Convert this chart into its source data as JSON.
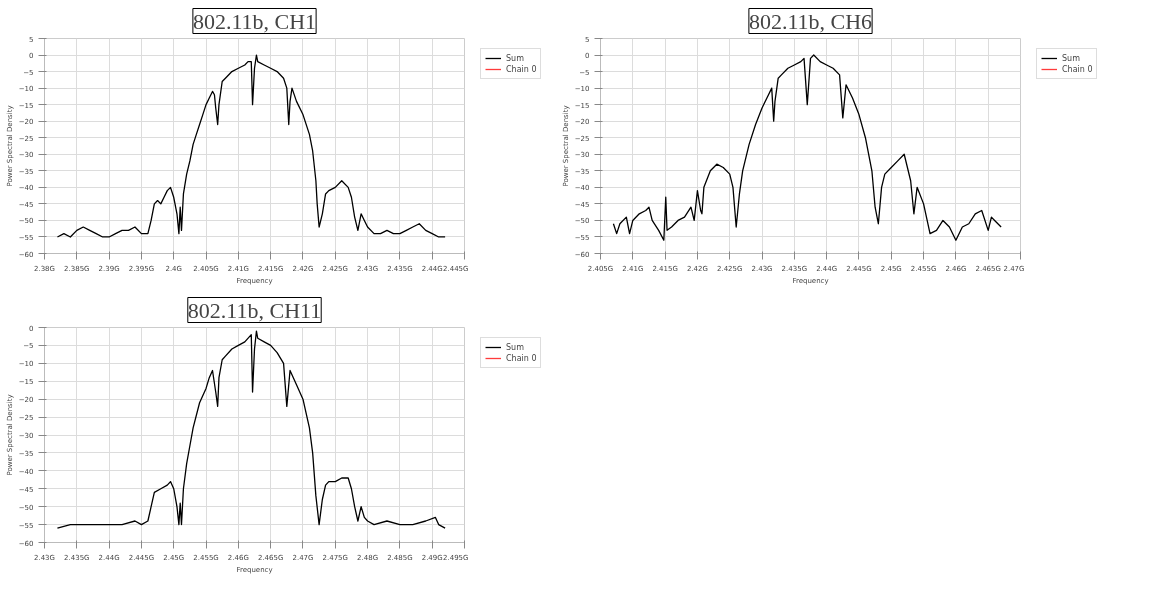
{
  "chart_data": [
    {
      "type": "line",
      "title": "802.11b, CH1",
      "xlabel": "Frequency",
      "ylabel": "Power Spectral Density",
      "grid": true,
      "legend": "right",
      "marker": "none",
      "line_style": "solid",
      "xlim": [
        2.38,
        2.445
      ],
      "ylim": [
        -60,
        5
      ],
      "xticks": [
        {
          "value": 2.38,
          "label": "2.38G"
        },
        {
          "value": 2.385,
          "label": "2.385G"
        },
        {
          "value": 2.39,
          "label": "2.39G"
        },
        {
          "value": 2.395,
          "label": "2.395G"
        },
        {
          "value": 2.4,
          "label": "2.4G"
        },
        {
          "value": 2.405,
          "label": "2.405G"
        },
        {
          "value": 2.41,
          "label": "2.41G"
        },
        {
          "value": 2.415,
          "label": "2.415G"
        },
        {
          "value": 2.42,
          "label": "2.42G"
        },
        {
          "value": 2.425,
          "label": "2.425G"
        },
        {
          "value": 2.43,
          "label": "2.43G"
        },
        {
          "value": 2.435,
          "label": "2.435G"
        },
        {
          "value": 2.44,
          "label": "2.44G"
        },
        {
          "value": 2.445,
          "label": "2.445G"
        }
      ],
      "yticks": [
        5,
        0,
        -5,
        -10,
        -15,
        -20,
        -25,
        -30,
        -35,
        -40,
        -45,
        -50,
        -55,
        -60
      ],
      "x": [
        2.382,
        2.383,
        2.384,
        2.385,
        2.386,
        2.387,
        2.388,
        2.389,
        2.39,
        2.391,
        2.392,
        2.393,
        2.394,
        2.395,
        2.396,
        2.3965,
        2.397,
        2.3975,
        2.398,
        2.3985,
        2.399,
        2.3995,
        2.4,
        2.4005,
        2.4008,
        2.401,
        2.4012,
        2.4015,
        2.402,
        2.4025,
        2.403,
        2.4035,
        2.404,
        2.4045,
        2.405,
        2.4055,
        2.406,
        2.4063,
        2.4065,
        2.4068,
        2.407,
        2.4075,
        2.408,
        2.409,
        2.41,
        2.411,
        2.4115,
        2.412,
        2.4122,
        2.4125,
        2.4128,
        2.413,
        2.414,
        2.415,
        2.416,
        2.417,
        2.4175,
        2.4178,
        2.418,
        2.4183,
        2.419,
        2.42,
        2.421,
        2.4215,
        2.422,
        2.4222,
        2.4225,
        2.423,
        2.4235,
        2.424,
        2.425,
        2.426,
        2.427,
        2.4275,
        2.428,
        2.4285,
        2.429,
        2.4295,
        2.43,
        2.431,
        2.432,
        2.433,
        2.434,
        2.435,
        2.436,
        2.437,
        2.438,
        2.439,
        2.44,
        2.441,
        2.442
      ],
      "series": [
        {
          "name": "Sum",
          "color": "#000000",
          "values": [
            -55,
            -54,
            -55,
            -53,
            -52,
            -53,
            -54,
            -55,
            -55,
            -54,
            -53,
            -53,
            -52,
            -54,
            -54,
            -50,
            -45,
            -44,
            -45,
            -43,
            -41,
            -40,
            -43,
            -48,
            -54,
            -46,
            -53,
            -42,
            -36,
            -32,
            -27,
            -24,
            -21,
            -18,
            -15,
            -13,
            -11,
            -12,
            -16,
            -21,
            -15,
            -8,
            -7,
            -5,
            -4,
            -3,
            -2,
            -2,
            -15,
            -4,
            0,
            -2,
            -3,
            -4,
            -5,
            -7,
            -10,
            -21,
            -14,
            -10,
            -14,
            -18,
            -24,
            -29,
            -38,
            -45,
            -52,
            -48,
            -42,
            -41,
            -40,
            -38,
            -40,
            -43,
            -49,
            -53,
            -48,
            -50,
            -52,
            -54,
            -54,
            -53,
            -54,
            -54,
            -53,
            -52,
            -51,
            -53,
            -54,
            -55,
            -55
          ]
        },
        {
          "name": "Chain 0",
          "color": "#ff3b3b",
          "values": [
            null,
            null,
            null,
            null,
            null,
            null,
            null,
            null,
            null,
            null,
            null,
            null,
            null,
            null,
            null,
            null,
            null,
            null,
            null,
            null,
            null,
            null,
            null,
            null,
            null,
            null,
            null,
            null,
            null,
            null,
            null,
            null,
            null,
            null,
            null,
            null,
            null,
            null,
            null,
            null,
            null,
            null,
            null,
            null,
            null,
            null,
            null,
            null,
            null,
            null,
            null,
            null,
            null,
            null,
            null,
            null,
            null,
            null,
            null,
            null,
            null,
            null,
            null,
            null,
            null,
            null,
            null,
            null,
            null,
            null,
            null,
            null,
            null,
            null,
            null,
            null,
            null,
            null,
            null,
            null,
            null,
            null,
            null,
            null,
            null,
            null,
            null,
            null,
            null,
            null,
            null
          ]
        }
      ]
    },
    {
      "type": "line",
      "title": "802.11b, CH6",
      "xlabel": "Frequency",
      "ylabel": "Power Spectral Density",
      "grid": true,
      "legend": "right",
      "marker": "none",
      "line_style": "solid",
      "xlim": [
        2.405,
        2.47
      ],
      "ylim": [
        -60,
        5
      ],
      "xticks": [
        {
          "value": 2.405,
          "label": "2.405G"
        },
        {
          "value": 2.41,
          "label": "2.41G"
        },
        {
          "value": 2.415,
          "label": "2.415G"
        },
        {
          "value": 2.42,
          "label": "2.42G"
        },
        {
          "value": 2.425,
          "label": "2.425G"
        },
        {
          "value": 2.43,
          "label": "2.43G"
        },
        {
          "value": 2.435,
          "label": "2.435G"
        },
        {
          "value": 2.44,
          "label": "2.44G"
        },
        {
          "value": 2.445,
          "label": "2.445G"
        },
        {
          "value": 2.45,
          "label": "2.45G"
        },
        {
          "value": 2.455,
          "label": "2.455G"
        },
        {
          "value": 2.46,
          "label": "2.46G"
        },
        {
          "value": 2.465,
          "label": "2.465G"
        },
        {
          "value": 2.47,
          "label": "2.47G"
        }
      ],
      "yticks": [
        5,
        0,
        -5,
        -10,
        -15,
        -20,
        -25,
        -30,
        -35,
        -40,
        -45,
        -50,
        -55,
        -60
      ],
      "x": [
        2.407,
        2.4075,
        2.408,
        2.409,
        2.4095,
        2.41,
        2.411,
        2.412,
        2.4125,
        2.413,
        2.414,
        2.4148,
        2.4151,
        2.4153,
        2.416,
        2.417,
        2.418,
        2.419,
        2.4195,
        2.42,
        2.4205,
        2.4207,
        2.421,
        2.422,
        2.423,
        2.424,
        2.425,
        2.4255,
        2.426,
        2.4265,
        2.427,
        2.428,
        2.429,
        2.43,
        2.431,
        2.4315,
        2.4318,
        2.432,
        2.4325,
        2.433,
        2.434,
        2.435,
        2.436,
        2.4365,
        2.437,
        2.4375,
        2.438,
        2.439,
        2.44,
        2.441,
        2.442,
        2.4425,
        2.443,
        2.444,
        2.445,
        2.446,
        2.447,
        2.4475,
        2.448,
        2.4485,
        2.449,
        2.45,
        2.451,
        2.452,
        2.453,
        2.4535,
        2.454,
        2.455,
        2.456,
        2.457,
        2.458,
        2.459,
        2.46,
        2.461,
        2.462,
        2.463,
        2.464,
        2.465,
        2.4655,
        2.466,
        2.467
      ],
      "series": [
        {
          "name": "Sum",
          "color": "#000000",
          "values": [
            -51,
            -54,
            -51,
            -49,
            -54,
            -50,
            -48,
            -47,
            -46,
            -50,
            -53,
            -56,
            -43,
            -53,
            -52,
            -50,
            -49,
            -46,
            -50,
            -41,
            -47,
            -48,
            -40,
            -35,
            -33,
            -34,
            -36,
            -40,
            -52,
            -42,
            -35,
            -27,
            -21,
            -16,
            -12,
            -10,
            -20,
            -14,
            -7,
            -6,
            -4,
            -3,
            -2,
            -1,
            -15,
            -1,
            0,
            -2,
            -3,
            -4,
            -6,
            -19,
            -9,
            -13,
            -18,
            -25,
            -35,
            -46,
            -51,
            -40,
            -36,
            -34,
            -32,
            -30,
            -38,
            -48,
            -40,
            -45,
            -54,
            -53,
            -50,
            -52,
            -56,
            -52,
            -51,
            -48,
            -47,
            -53,
            -49,
            -50,
            -52
          ]
        },
        {
          "name": "Chain 0",
          "color": "#ff3b3b",
          "values": [
            null,
            null,
            null,
            null,
            null,
            null,
            null,
            null,
            null,
            null,
            null,
            null,
            null,
            null,
            null,
            null,
            null,
            null,
            null,
            null,
            null,
            null,
            null,
            null,
            null,
            null,
            null,
            null,
            null,
            null,
            null,
            null,
            null,
            null,
            null,
            null,
            null,
            null,
            null,
            null,
            null,
            null,
            null,
            null,
            null,
            null,
            null,
            null,
            null,
            null,
            null,
            null,
            null,
            null,
            null,
            null,
            null,
            null,
            null,
            null,
            null,
            null,
            null,
            null,
            null,
            null,
            null,
            null,
            null,
            null,
            null,
            null,
            null,
            null,
            null,
            null,
            null,
            null,
            null,
            null,
            null
          ]
        }
      ]
    },
    {
      "type": "line",
      "title": "802.11b, CH11",
      "xlabel": "Frequency",
      "ylabel": "Power Spectral Density",
      "grid": true,
      "legend": "right",
      "marker": "none",
      "line_style": "solid",
      "xlim": [
        2.43,
        2.495
      ],
      "ylim": [
        -60,
        0
      ],
      "xticks": [
        {
          "value": 2.43,
          "label": "2.43G"
        },
        {
          "value": 2.435,
          "label": "2.435G"
        },
        {
          "value": 2.44,
          "label": "2.44G"
        },
        {
          "value": 2.445,
          "label": "2.445G"
        },
        {
          "value": 2.45,
          "label": "2.45G"
        },
        {
          "value": 2.455,
          "label": "2.455G"
        },
        {
          "value": 2.46,
          "label": "2.46G"
        },
        {
          "value": 2.465,
          "label": "2.465G"
        },
        {
          "value": 2.47,
          "label": "2.47G"
        },
        {
          "value": 2.475,
          "label": "2.475G"
        },
        {
          "value": 2.48,
          "label": "2.48G"
        },
        {
          "value": 2.485,
          "label": "2.485G"
        },
        {
          "value": 2.49,
          "label": "2.49G"
        },
        {
          "value": 2.495,
          "label": "2.495G"
        }
      ],
      "yticks": [
        0,
        -5,
        -10,
        -15,
        -20,
        -25,
        -30,
        -35,
        -40,
        -45,
        -50,
        -55,
        -60
      ],
      "x": [
        2.432,
        2.434,
        2.436,
        2.438,
        2.44,
        2.442,
        2.444,
        2.445,
        2.446,
        2.4465,
        2.447,
        2.448,
        2.449,
        2.4495,
        2.45,
        2.4505,
        2.4508,
        2.451,
        2.4512,
        2.4515,
        2.452,
        2.4525,
        2.453,
        2.454,
        2.455,
        2.4555,
        2.456,
        2.4565,
        2.4568,
        2.457,
        2.4575,
        2.458,
        2.459,
        2.46,
        2.461,
        2.462,
        2.4622,
        2.4625,
        2.4628,
        2.463,
        2.464,
        2.465,
        2.466,
        2.467,
        2.4675,
        2.468,
        2.469,
        2.47,
        2.471,
        2.4715,
        2.472,
        2.4725,
        2.473,
        2.4735,
        2.474,
        2.475,
        2.476,
        2.477,
        2.4775,
        2.478,
        2.4785,
        2.479,
        2.4795,
        2.48,
        2.481,
        2.483,
        2.485,
        2.487,
        2.489,
        2.4905,
        2.491,
        2.492
      ],
      "series": [
        {
          "name": "Sum",
          "color": "#000000",
          "values": [
            -56,
            -55,
            -55,
            -55,
            -55,
            -55,
            -54,
            -55,
            -54,
            -50,
            -46,
            -45,
            -44,
            -43,
            -45,
            -50,
            -55,
            -49,
            -55,
            -45,
            -38,
            -33,
            -28,
            -21,
            -17,
            -14,
            -12,
            -18,
            -22,
            -14,
            -9,
            -8,
            -6,
            -5,
            -4,
            -2,
            -18,
            -6,
            -1,
            -3,
            -4,
            -5,
            -7,
            -10,
            -22,
            -12,
            -16,
            -20,
            -28,
            -35,
            -47,
            -55,
            -48,
            -44,
            -43,
            -43,
            -42,
            -42,
            -45,
            -50,
            -54,
            -50,
            -53,
            -54,
            -55,
            -54,
            -55,
            -55,
            -54,
            -53,
            -55,
            -56
          ]
        },
        {
          "name": "Chain 0",
          "color": "#ff3b3b",
          "values": [
            null,
            null,
            null,
            null,
            null,
            null,
            null,
            null,
            null,
            null,
            null,
            null,
            null,
            null,
            null,
            null,
            null,
            null,
            null,
            null,
            null,
            null,
            null,
            null,
            null,
            null,
            null,
            null,
            null,
            null,
            null,
            null,
            null,
            null,
            null,
            null,
            null,
            null,
            null,
            null,
            null,
            null,
            null,
            null,
            null,
            null,
            null,
            null,
            null,
            null,
            null,
            null,
            null,
            null,
            null,
            null,
            null,
            null,
            null,
            null,
            null,
            null,
            null,
            null,
            null,
            null,
            null,
            null,
            null,
            null,
            null,
            null
          ]
        }
      ]
    }
  ]
}
